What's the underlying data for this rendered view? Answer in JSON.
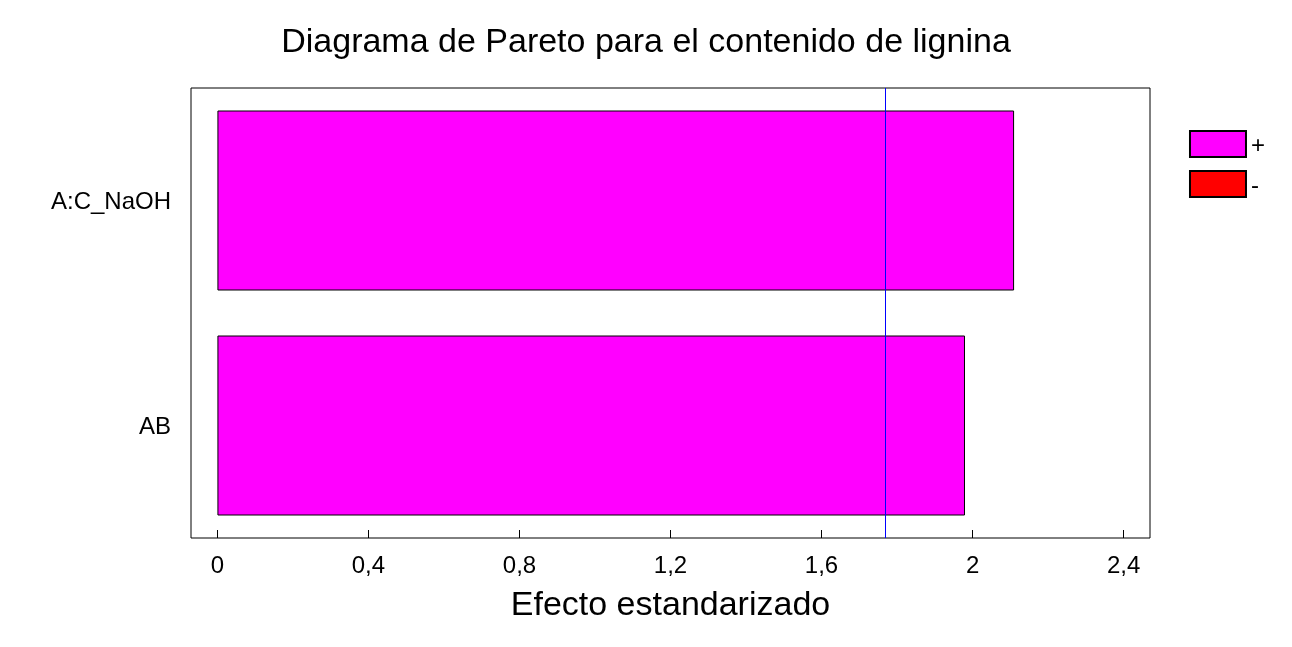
{
  "chart_data": {
    "type": "bar",
    "orientation": "horizontal",
    "title": "Diagrama de Pareto para el contenido de lignina",
    "xlabel": "Efecto estandarizado",
    "categories": [
      "A:C_NaOH",
      "AB"
    ],
    "series": [
      {
        "name": "+",
        "color": "#ff00ff",
        "values": [
          2.11,
          1.98
        ]
      },
      {
        "name": "-",
        "color": "#ff0000",
        "values": [
          null,
          null
        ]
      }
    ],
    "xlim": [
      -0.07,
      2.47
    ],
    "xticks": [
      0,
      {
        "value": 0.4,
        "label": "0,4"
      },
      {
        "value": 0.8,
        "label": "0,8"
      },
      {
        "value": 1.2,
        "label": "1,2"
      },
      {
        "value": 1.6,
        "label": "1,6"
      },
      2,
      {
        "value": 2.4,
        "label": "2,4"
      }
    ],
    "ref_lines": [
      {
        "axis": "x",
        "value": 1.77,
        "color": "#0000ff"
      }
    ],
    "legend": "top right"
  }
}
